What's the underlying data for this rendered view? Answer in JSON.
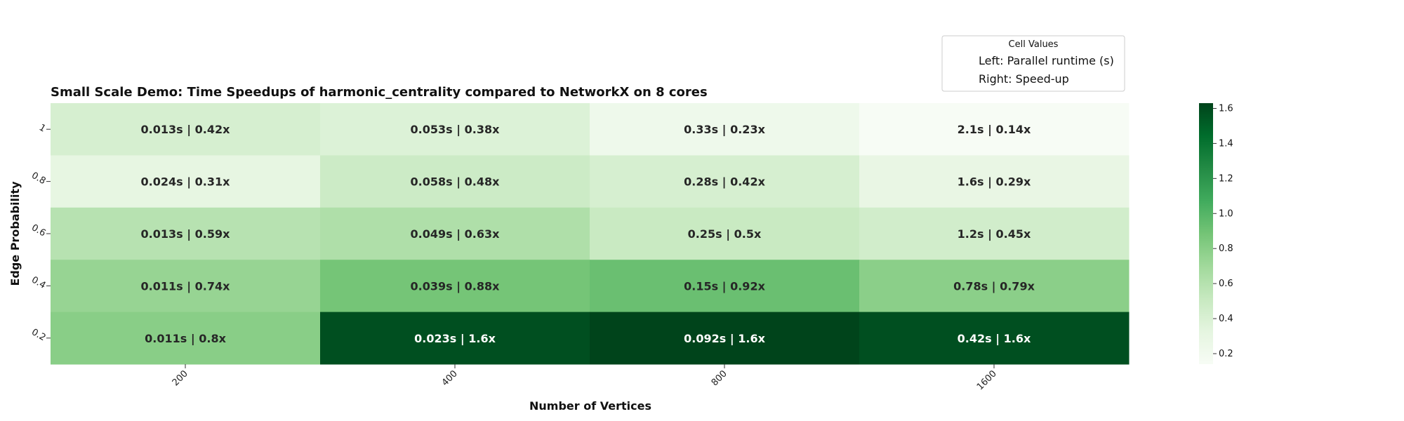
{
  "chart_data": {
    "type": "heatmap",
    "title": "Small Scale Demo: Time Speedups of harmonic_centrality compared to NetworkX on 8 cores",
    "xlabel": "Number of Vertices",
    "ylabel": "Edge Probability",
    "x_categories": [
      "200",
      "400",
      "800",
      "1600"
    ],
    "y_categories": [
      "1",
      "0.8",
      "0.6",
      "0.4",
      "0.2"
    ],
    "values": [
      [
        0.42,
        0.38,
        0.23,
        0.14
      ],
      [
        0.31,
        0.48,
        0.42,
        0.29
      ],
      [
        0.59,
        0.63,
        0.5,
        0.45
      ],
      [
        0.74,
        0.88,
        0.92,
        0.79
      ],
      [
        0.8,
        1.6,
        1.6,
        1.6
      ]
    ],
    "color_values": [
      [
        0.42,
        0.38,
        0.23,
        0.14
      ],
      [
        0.31,
        0.48,
        0.42,
        0.29
      ],
      [
        0.59,
        0.63,
        0.5,
        0.45
      ],
      [
        0.74,
        0.88,
        0.92,
        0.79
      ],
      [
        0.8,
        1.58,
        1.63,
        1.58
      ]
    ],
    "cell_labels": [
      [
        "0.013s | 0.42x",
        "0.053s | 0.38x",
        "0.33s | 0.23x",
        "2.1s | 0.14x"
      ],
      [
        "0.024s | 0.31x",
        "0.058s | 0.48x",
        "0.28s | 0.42x",
        "1.6s | 0.29x"
      ],
      [
        "0.013s | 0.59x",
        "0.049s | 0.63x",
        "0.25s | 0.5x",
        "1.2s | 0.45x"
      ],
      [
        "0.011s | 0.74x",
        "0.039s | 0.88x",
        "0.15s | 0.92x",
        "0.78s | 0.79x"
      ],
      [
        "0.011s | 0.8x",
        "0.023s | 1.6x",
        "0.092s | 1.6x",
        "0.42s | 1.6x"
      ]
    ],
    "colorbar": {
      "min": 0.14,
      "max": 1.63,
      "ticks": [
        "0.2",
        "0.4",
        "0.6",
        "0.8",
        "1.0",
        "1.2",
        "1.4",
        "1.6"
      ],
      "tick_values": [
        0.2,
        0.4,
        0.6,
        0.8,
        1.0,
        1.2,
        1.4,
        1.6
      ]
    },
    "colormap": [
      "#f7fcf5",
      "#e5f5e0",
      "#c7e9c0",
      "#a1d99b",
      "#74c476",
      "#41ab5d",
      "#238b45",
      "#006d2c",
      "#00441b"
    ],
    "legend": {
      "title": "Cell Values",
      "lines": [
        "Left: Parallel runtime (s)",
        "Right: Speed-up"
      ],
      "placement": "top-right"
    }
  }
}
